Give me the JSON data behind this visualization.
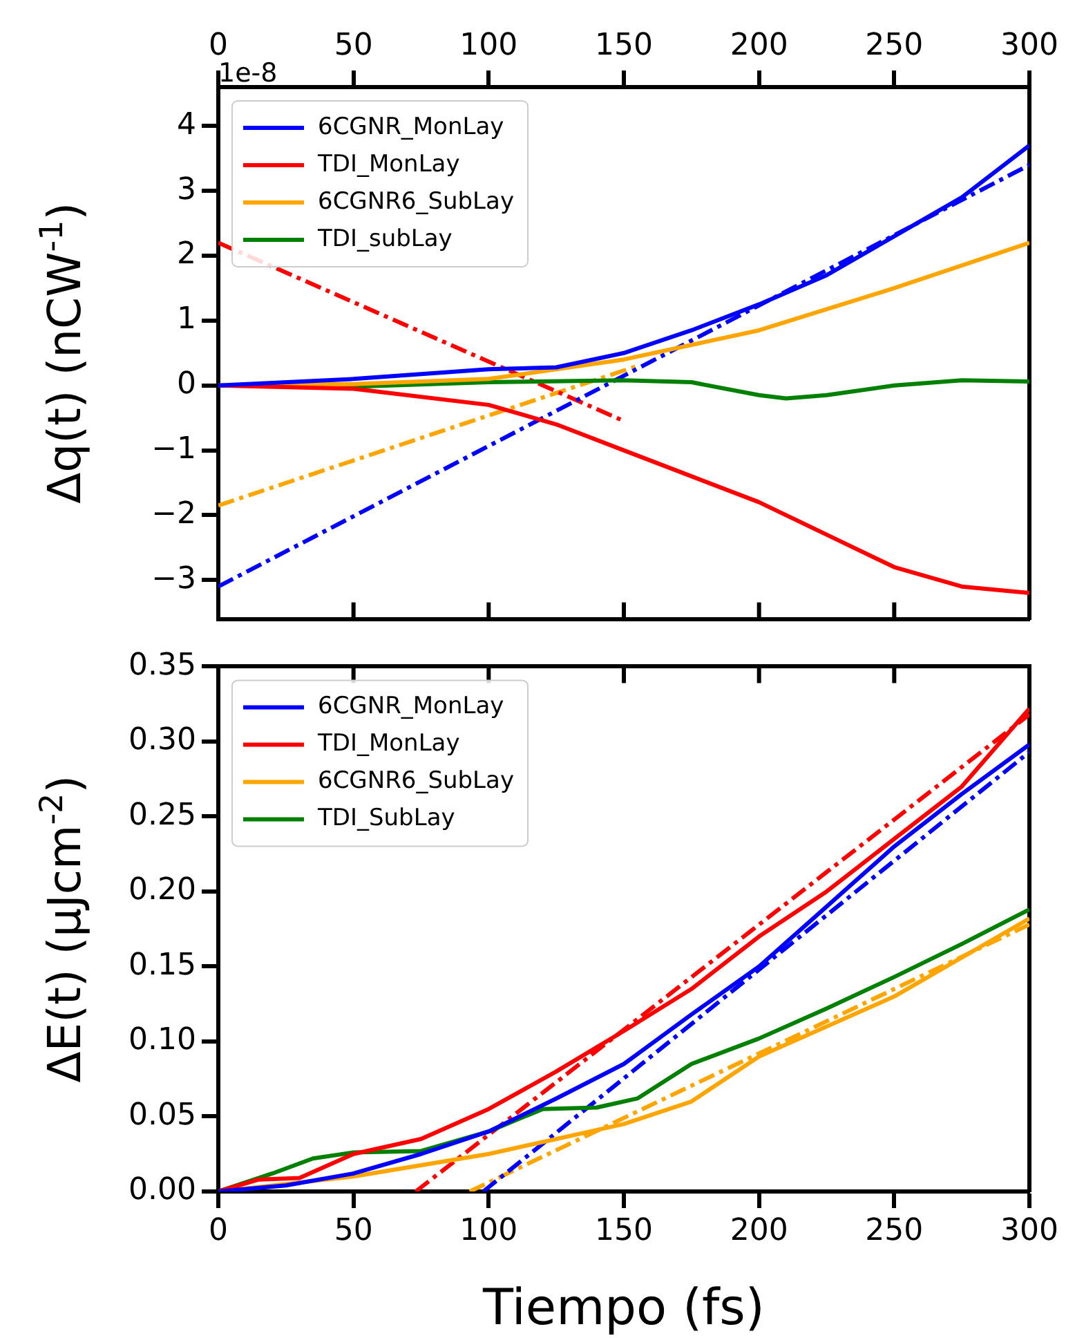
{
  "chart_data": [
    {
      "type": "line",
      "ylabel": "Δq(t) (nCW$^{-1}$)",
      "annotations": [
        "1e-8"
      ],
      "legend": "top left",
      "grid": false,
      "xlim": [
        0,
        300
      ],
      "xticks": [
        0,
        50,
        100,
        150,
        200,
        250,
        300
      ],
      "ylim": [
        -3.6,
        4.6
      ],
      "yticks": [
        {
          "value": -3,
          "label": "−3"
        },
        {
          "value": -2,
          "label": "−2"
        },
        {
          "value": -1,
          "label": "−1"
        },
        0,
        1,
        2,
        3,
        4
      ],
      "series": [
        {
          "name": "6CGNR_MonLay",
          "color": "#0000ff",
          "x": [
            0,
            50,
            100,
            125,
            150,
            175,
            200,
            225,
            250,
            275,
            300
          ],
          "values": [
            0,
            0.1,
            0.25,
            0.28,
            0.5,
            0.85,
            1.25,
            1.7,
            2.3,
            2.9,
            3.7
          ]
        },
        {
          "name": "TDI_MonLay",
          "color": "#ff0000",
          "x": [
            0,
            50,
            100,
            125,
            150,
            175,
            200,
            225,
            250,
            275,
            300
          ],
          "values": [
            0,
            -0.05,
            -0.3,
            -0.6,
            -1.0,
            -1.4,
            -1.8,
            -2.3,
            -2.8,
            -3.1,
            -3.2
          ]
        },
        {
          "name": "6CGNR6_SubLay",
          "color": "#ffa500",
          "x": [
            0,
            50,
            100,
            150,
            200,
            250,
            300
          ],
          "values": [
            0,
            0.02,
            0.1,
            0.4,
            0.85,
            1.5,
            2.2
          ]
        },
        {
          "name": "TDI_subLay",
          "color": "#008000",
          "x": [
            0,
            50,
            100,
            150,
            175,
            200,
            210,
            225,
            250,
            275,
            300
          ],
          "values": [
            0,
            -0.02,
            0.05,
            0.08,
            0.05,
            -0.15,
            -0.2,
            -0.15,
            0.0,
            0.08,
            0.06
          ]
        },
        {
          "color": "#0000ff",
          "line_style": "dashed",
          "x": [
            0,
            300
          ],
          "values": [
            -3.1,
            3.4
          ]
        },
        {
          "color": "#ff0000",
          "line_style": "dashed",
          "x": [
            0,
            149
          ],
          "values": [
            2.2,
            -0.53
          ]
        },
        {
          "color": "#ffa500",
          "line_style": "dashed",
          "x": [
            0,
            155
          ],
          "values": [
            -1.85,
            0.3
          ]
        }
      ]
    },
    {
      "type": "line",
      "xlabel": "Tiempo (fs)",
      "ylabel": "ΔE(t) (μJcm$^{-2}$)",
      "legend": "top left",
      "grid": false,
      "xlim": [
        0,
        300
      ],
      "xticks": [
        0,
        50,
        100,
        150,
        200,
        250,
        300
      ],
      "ylim": [
        0,
        0.35
      ],
      "yticks": [
        {
          "value": 0,
          "label": "0.00"
        },
        {
          "value": 0.05,
          "label": "0.05"
        },
        {
          "value": 0.1,
          "label": "0.10"
        },
        {
          "value": 0.15,
          "label": "0.15"
        },
        {
          "value": 0.2,
          "label": "0.20"
        },
        {
          "value": 0.25,
          "label": "0.25"
        },
        {
          "value": 0.3,
          "label": "0.30"
        },
        {
          "value": 0.35,
          "label": "0.35"
        }
      ],
      "series": [
        {
          "name": "6CGNR_MonLay",
          "color": "#0000ff",
          "x": [
            0,
            25,
            50,
            75,
            100,
            125,
            150,
            175,
            200,
            225,
            250,
            275,
            300
          ],
          "values": [
            0,
            0.004,
            0.012,
            0.025,
            0.04,
            0.062,
            0.085,
            0.118,
            0.15,
            0.19,
            0.23,
            0.265,
            0.298
          ]
        },
        {
          "name": "TDI_MonLay",
          "color": "#ff0000",
          "x": [
            0,
            15,
            30,
            50,
            75,
            100,
            125,
            150,
            175,
            200,
            225,
            250,
            275,
            300
          ],
          "values": [
            0,
            0.008,
            0.009,
            0.025,
            0.035,
            0.055,
            0.08,
            0.107,
            0.135,
            0.17,
            0.2,
            0.235,
            0.27,
            0.322
          ]
        },
        {
          "name": "6CGNR6_SubLay",
          "color": "#ffa500",
          "x": [
            0,
            50,
            100,
            150,
            175,
            200,
            250,
            300
          ],
          "values": [
            0,
            0.01,
            0.025,
            0.045,
            0.06,
            0.09,
            0.13,
            0.182
          ]
        },
        {
          "name": "TDI_SubLay",
          "color": "#008000",
          "x": [
            0,
            20,
            35,
            50,
            75,
            100,
            120,
            140,
            155,
            175,
            200,
            225,
            250,
            275,
            300
          ],
          "values": [
            0,
            0.012,
            0.022,
            0.026,
            0.027,
            0.04,
            0.055,
            0.056,
            0.062,
            0.085,
            0.102,
            0.122,
            0.143,
            0.165,
            0.188
          ]
        },
        {
          "color": "#0000ff",
          "line_style": "dashed",
          "x": [
            98,
            300
          ],
          "values": [
            0,
            0.293
          ]
        },
        {
          "color": "#ff0000",
          "line_style": "dashed",
          "x": [
            73,
            300
          ],
          "values": [
            0,
            0.318
          ]
        },
        {
          "color": "#ffa500",
          "line_style": "dashed",
          "x": [
            93,
            300
          ],
          "values": [
            0,
            0.178
          ]
        }
      ]
    }
  ]
}
